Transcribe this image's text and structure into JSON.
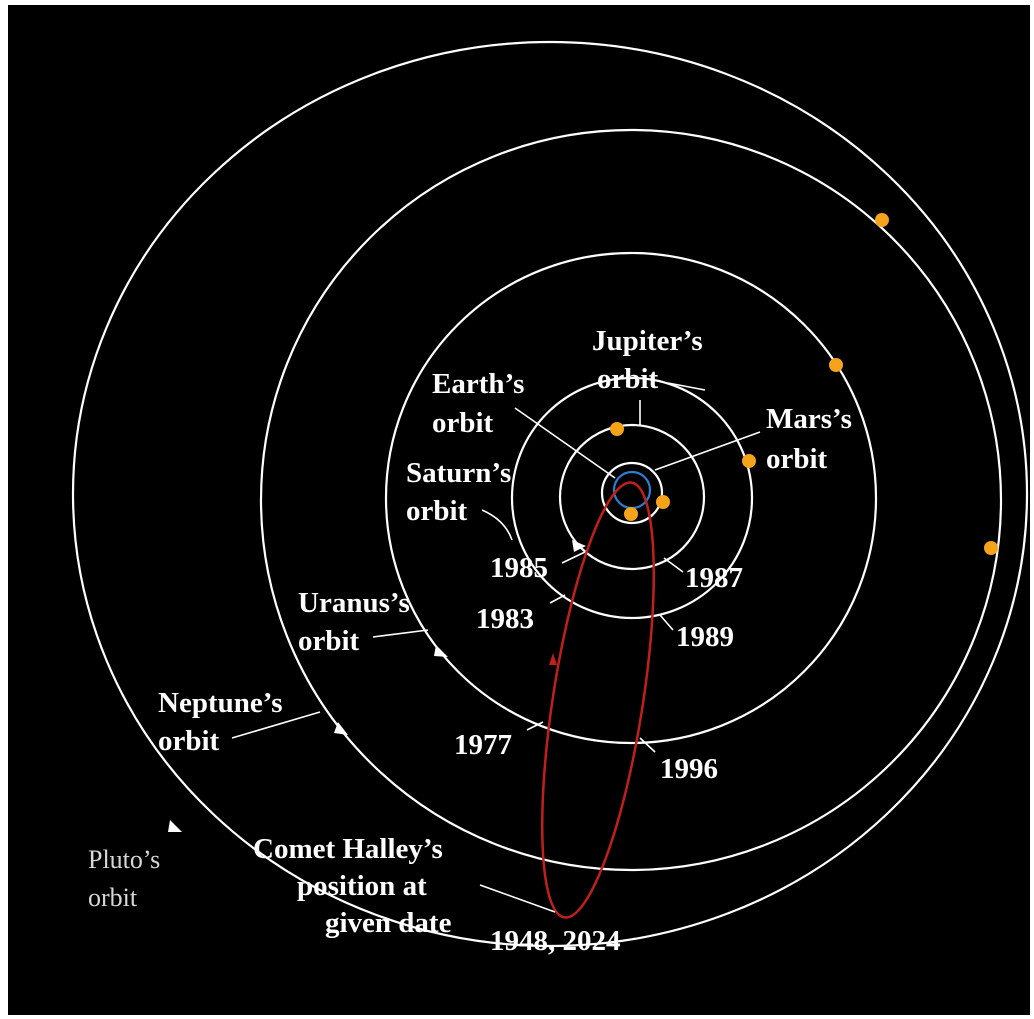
{
  "labels": {
    "jupiter": [
      "Jupiter’s",
      "orbit"
    ],
    "earth": [
      "Earth’s",
      "orbit"
    ],
    "mars": [
      "Mars’s",
      "orbit"
    ],
    "saturn": [
      "Saturn’s",
      "orbit"
    ],
    "uranus": [
      "Uranus’s",
      "orbit"
    ],
    "neptune": [
      "Neptune’s",
      "orbit"
    ],
    "pluto": [
      "Pluto’s",
      "orbit"
    ],
    "comet": [
      "Comet Halley’s",
      "position at",
      "given date"
    ]
  },
  "dates": [
    "1985",
    "1987",
    "1983",
    "1989",
    "1977",
    "1996",
    "1948, 2024"
  ]
}
